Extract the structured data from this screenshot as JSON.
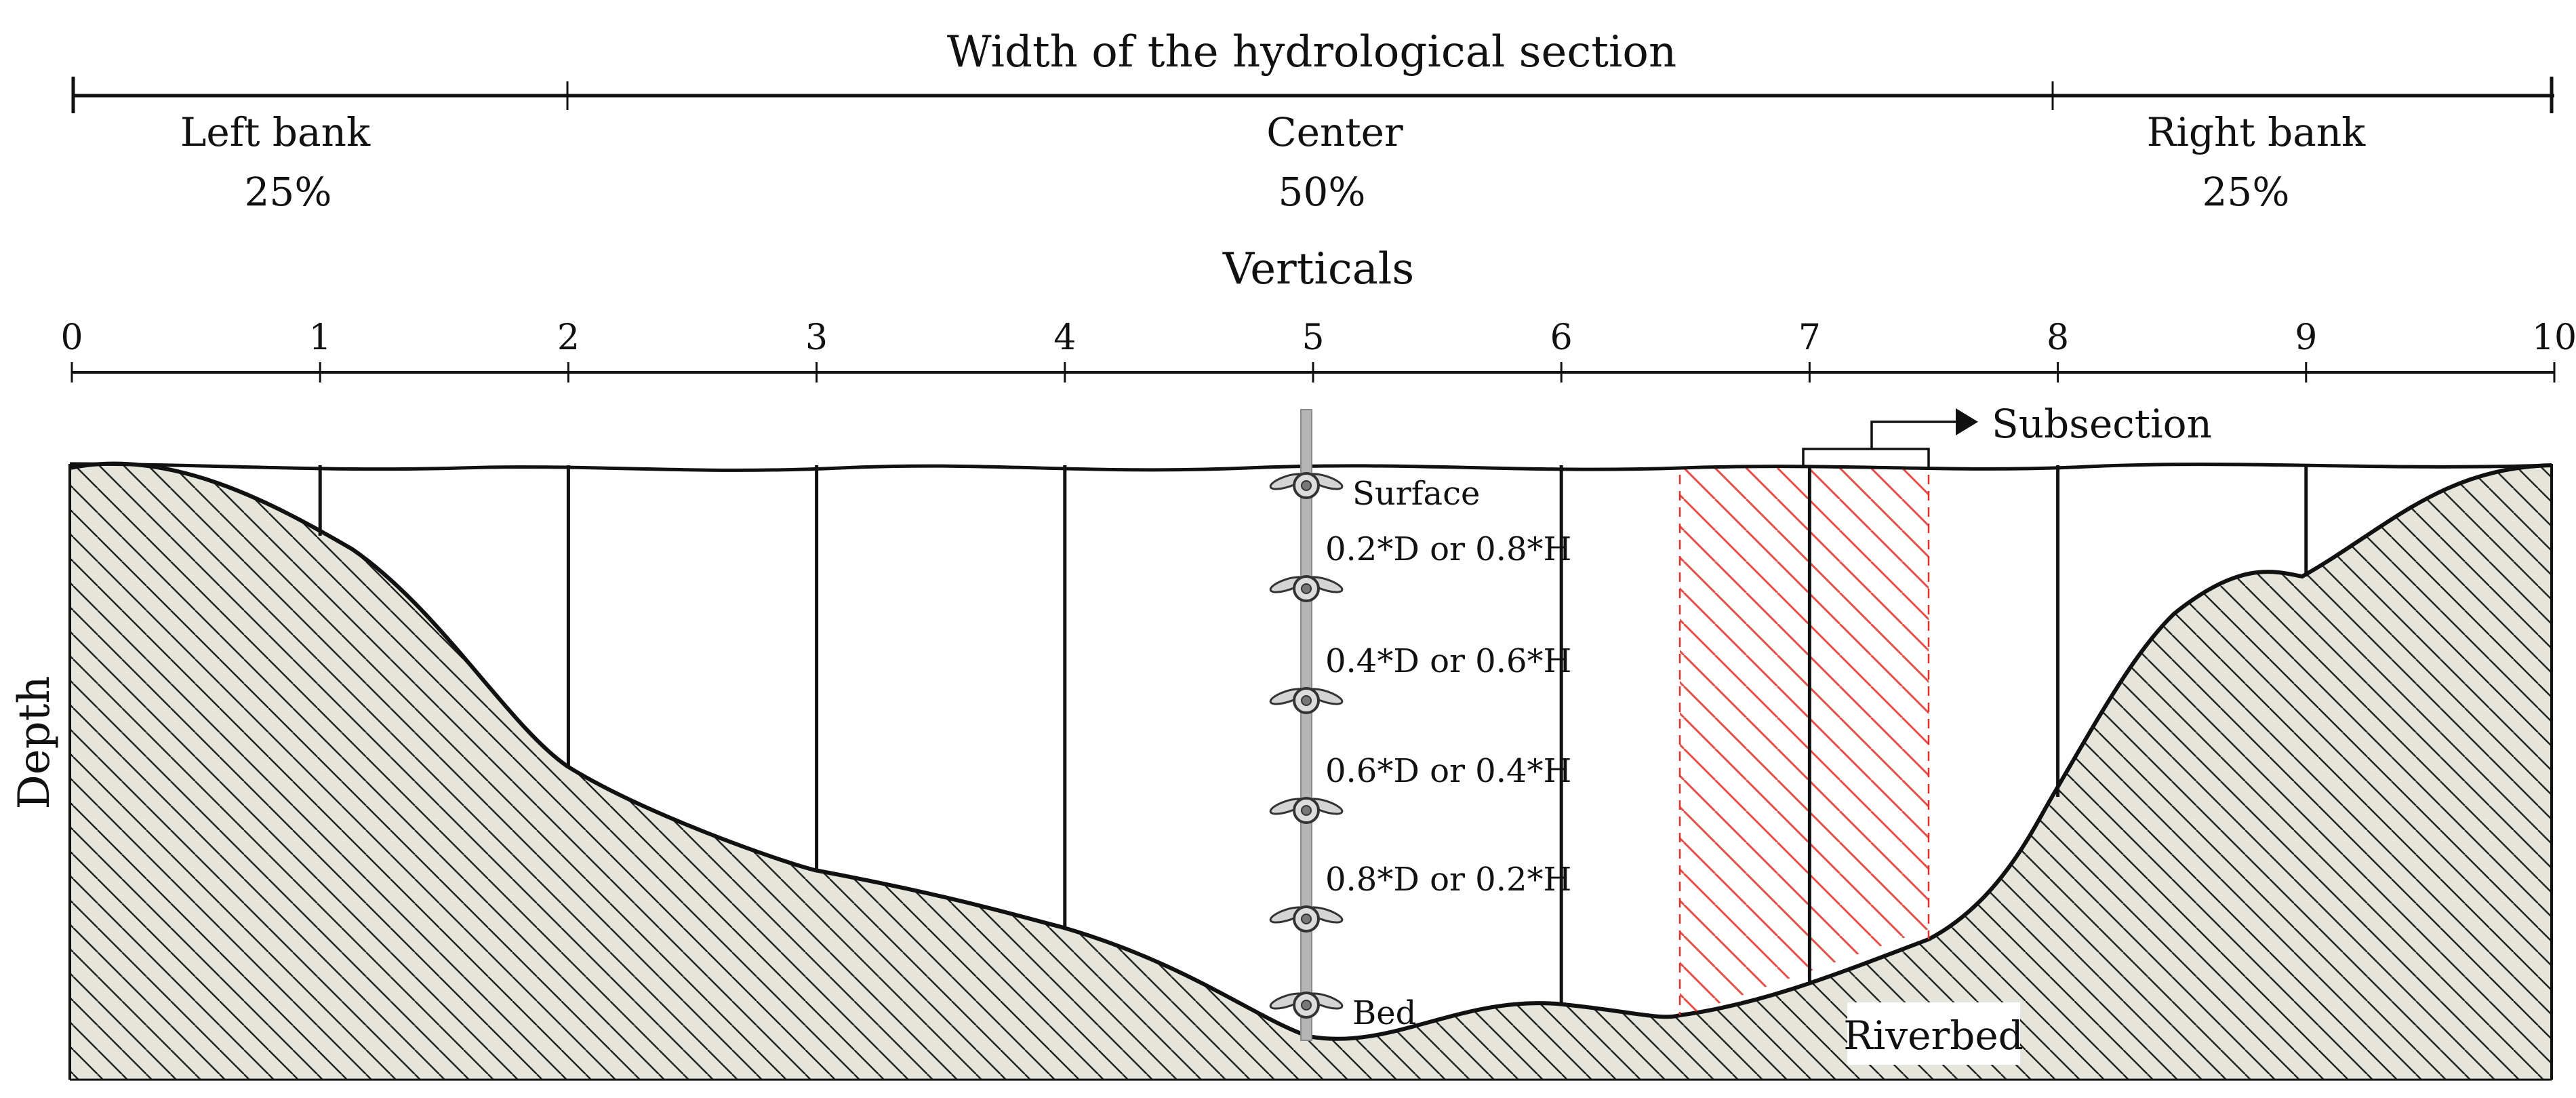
{
  "title": "Width of the hydrological section",
  "segments": [
    {
      "label": "Left bank",
      "percent": "25%"
    },
    {
      "label": "Center",
      "percent": "50%"
    },
    {
      "label": "Right bank",
      "percent": "25%"
    }
  ],
  "verticals_title": "Verticals",
  "ticks": [
    "0",
    "1",
    "2",
    "3",
    "4",
    "5",
    "6",
    "7",
    "8",
    "9",
    "10"
  ],
  "depth_label": "Depth",
  "subsection_label": "Subsection",
  "riverbed_label": "Riverbed",
  "measurement_points": [
    "Surface",
    "0.2*D or 0.8*H",
    "0.4*D or 0.6*H",
    "0.6*D or 0.4*H",
    "0.8*D or 0.2*H",
    "Bed"
  ],
  "colors": {
    "ground_fill": "#e5e5dc",
    "outline": "#111111",
    "subsection_hatch": "#e0302a",
    "meter_rod": "#b5b5b5"
  }
}
